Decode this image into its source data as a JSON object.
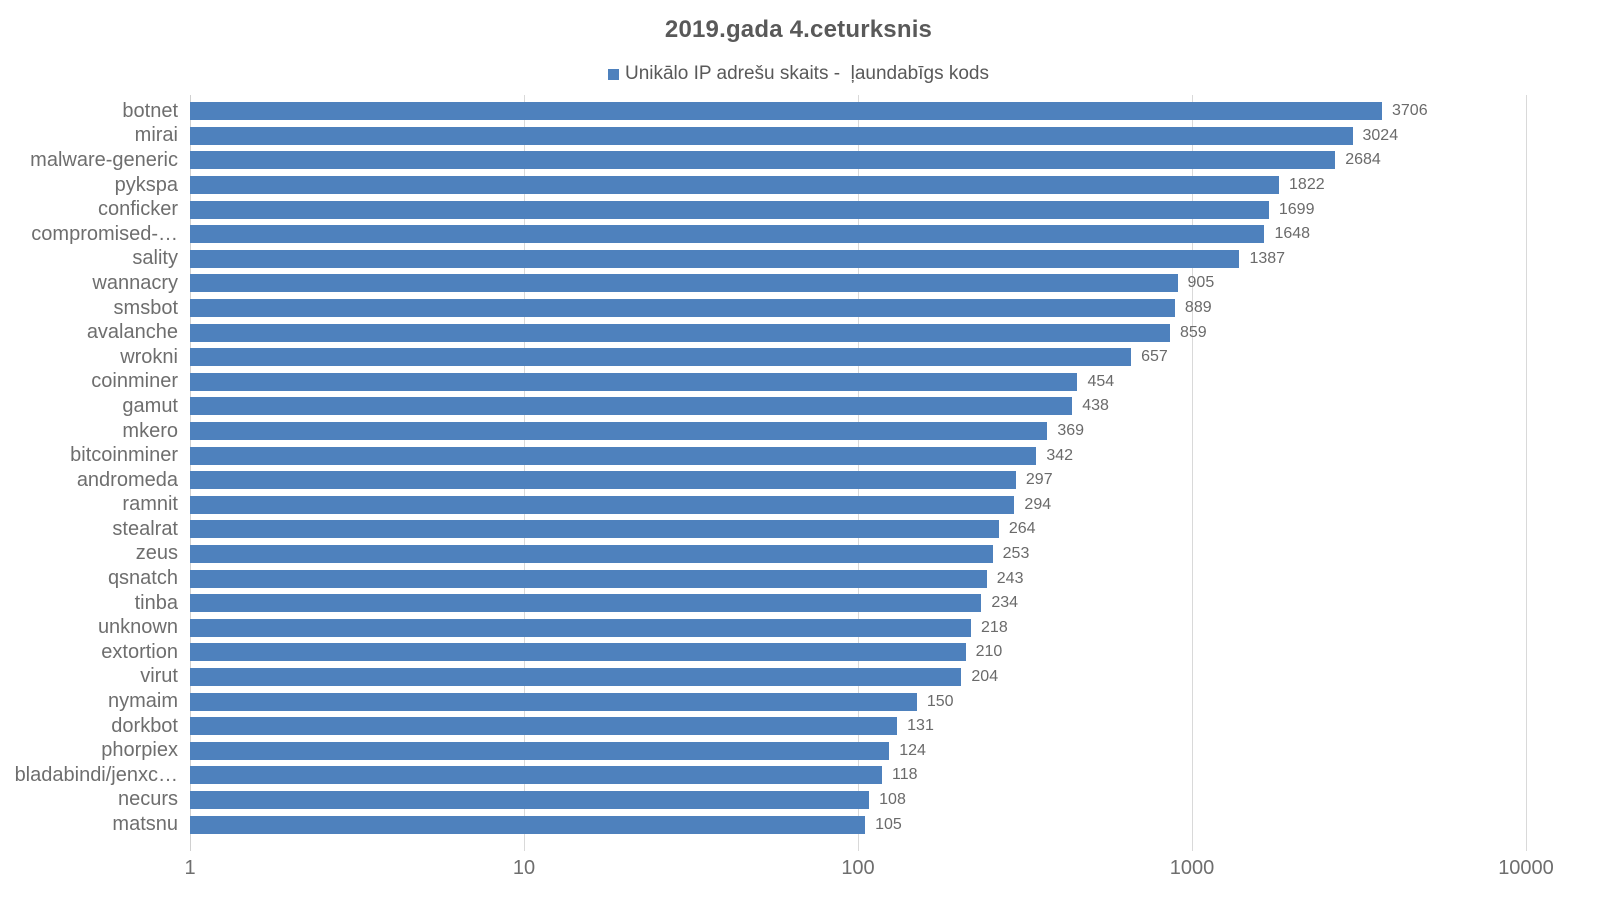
{
  "colors": {
    "bar": "#4E81BD",
    "gridline": "#D9D9D9",
    "title_text": "#595959",
    "label_text": "#6E6E6E"
  },
  "chart_data": {
    "type": "bar",
    "orientation": "horizontal",
    "title": "2019.gada 4.ceturksnis",
    "series_name": "Unikālo IP adrešu skaits -  ļaundabīgs kods",
    "legend_position": "top",
    "x_scale": "log",
    "xlim": [
      1,
      10000
    ],
    "x_ticks": [
      "1",
      "10",
      "100",
      "1000",
      "10000"
    ],
    "grid": true,
    "categories": [
      "botnet",
      "mirai",
      "malware-generic",
      "pykspa",
      "conficker",
      "compromised-…",
      "sality",
      "wannacry",
      "smsbot",
      "avalanche",
      "wrokni",
      "coinminer",
      "gamut",
      "mkero",
      "bitcoinminer",
      "andromeda",
      "ramnit",
      "stealrat",
      "zeus",
      "qsnatch",
      "tinba",
      "unknown",
      "extortion",
      "virut",
      "nymaim",
      "dorkbot",
      "phorpiex",
      "bladabindi/jenxc…",
      "necurs",
      "matsnu"
    ],
    "values": [
      3706,
      3024,
      2684,
      1822,
      1699,
      1648,
      1387,
      905,
      889,
      859,
      657,
      454,
      438,
      369,
      342,
      297,
      294,
      264,
      253,
      243,
      234,
      218,
      210,
      204,
      150,
      131,
      124,
      118,
      108,
      105
    ]
  }
}
